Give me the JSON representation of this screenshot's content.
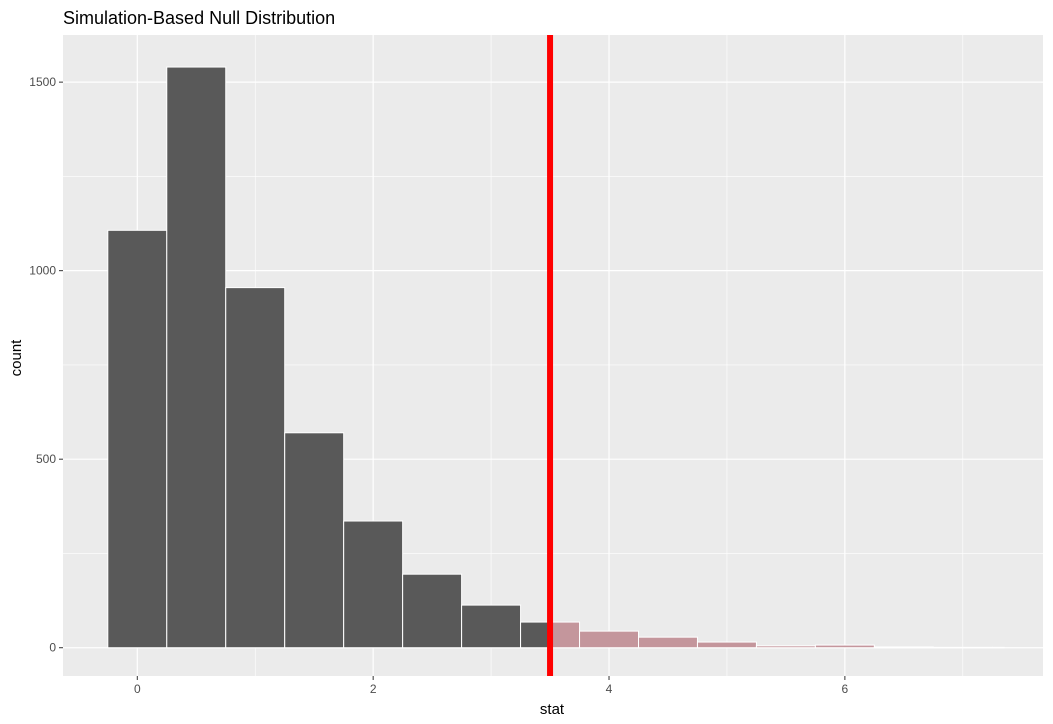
{
  "chart_data": {
    "type": "bar",
    "title": "Simulation-Based Null Distribution",
    "xlabel": "stat",
    "ylabel": "count",
    "xlim": [
      -0.63,
      7.68
    ],
    "ylim": [
      -75,
      1625
    ],
    "x_ticks": [
      0,
      2,
      4,
      6
    ],
    "y_ticks": [
      0,
      500,
      1000,
      1500
    ],
    "bin_width": 0.5,
    "bins": [
      {
        "start": -0.25,
        "end": 0.25,
        "count": 1107
      },
      {
        "start": 0.25,
        "end": 0.75,
        "count": 1540
      },
      {
        "start": 0.75,
        "end": 1.25,
        "count": 955
      },
      {
        "start": 1.25,
        "end": 1.75,
        "count": 570
      },
      {
        "start": 1.75,
        "end": 2.25,
        "count": 336
      },
      {
        "start": 2.25,
        "end": 2.75,
        "count": 195
      },
      {
        "start": 2.75,
        "end": 3.25,
        "count": 113
      },
      {
        "start": 3.25,
        "end": 3.5,
        "count": 68
      },
      {
        "start": 3.5,
        "end": 3.75,
        "count": 68
      },
      {
        "start": 3.75,
        "end": 4.25,
        "count": 44
      },
      {
        "start": 4.25,
        "end": 4.75,
        "count": 28
      },
      {
        "start": 4.75,
        "end": 5.25,
        "count": 15
      },
      {
        "start": 5.25,
        "end": 5.75,
        "count": 5
      },
      {
        "start": 5.75,
        "end": 6.25,
        "count": 7
      },
      {
        "start": 6.25,
        "end": 6.75,
        "count": 2
      },
      {
        "start": 6.75,
        "end": 7.25,
        "count": 1
      },
      {
        "start": 7.25,
        "end": 7.35,
        "count": 1
      }
    ],
    "observed_stat": 3.5,
    "shade_direction": "greater",
    "grid": true,
    "colors": {
      "panel_background": "#ebebeb",
      "grid_line": "#ffffff",
      "bar_fill": "#595959",
      "shaded_fill": "#c4969c",
      "bar_outline": "#ffffff",
      "observed_line": "#ff0000"
    }
  }
}
